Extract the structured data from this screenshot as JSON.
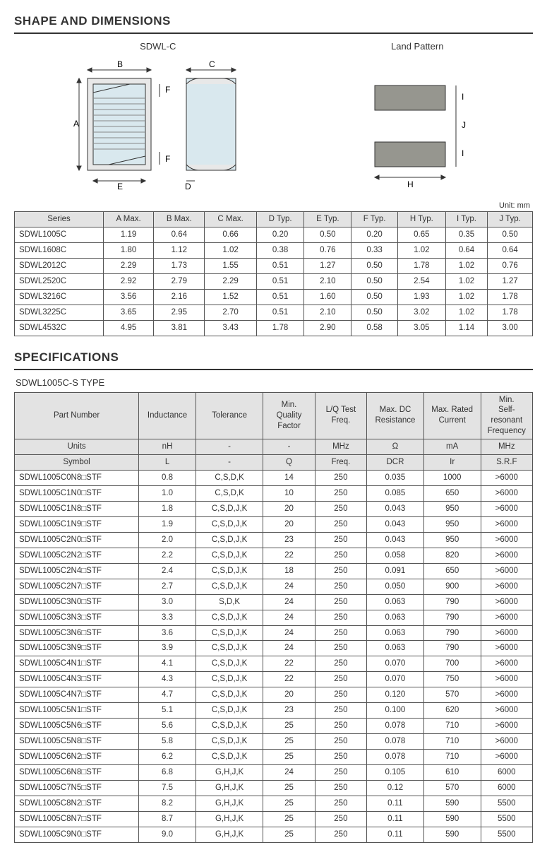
{
  "sections": {
    "shape": "SHAPE AND DIMENSIONS",
    "spec": "SPECIFICATIONS"
  },
  "diagrams": {
    "shape_title": "SDWL-C",
    "land_title": "Land Pattern",
    "labels": {
      "A": "A",
      "B": "B",
      "C": "C",
      "D": "D",
      "E": "E",
      "F": "F",
      "H": "H",
      "I": "I",
      "J": "J"
    }
  },
  "unit_label": "Unit: mm",
  "dim_table": {
    "columns": [
      "Series",
      "A Max.",
      "B Max.",
      "C Max.",
      "D Typ.",
      "E Typ.",
      "F Typ.",
      "H Typ.",
      "I Typ.",
      "J Typ."
    ],
    "rows": [
      [
        "SDWL1005C",
        "1.19",
        "0.64",
        "0.66",
        "0.20",
        "0.50",
        "0.20",
        "0.65",
        "0.35",
        "0.50"
      ],
      [
        "SDWL1608C",
        "1.80",
        "1.12",
        "1.02",
        "0.38",
        "0.76",
        "0.33",
        "1.02",
        "0.64",
        "0.64"
      ],
      [
        "SDWL2012C",
        "2.29",
        "1.73",
        "1.55",
        "0.51",
        "1.27",
        "0.50",
        "1.78",
        "1.02",
        "0.76"
      ],
      [
        "SDWL2520C",
        "2.92",
        "2.79",
        "2.29",
        "0.51",
        "2.10",
        "0.50",
        "2.54",
        "1.02",
        "1.27"
      ],
      [
        "SDWL3216C",
        "3.56",
        "2.16",
        "1.52",
        "0.51",
        "1.60",
        "0.50",
        "1.93",
        "1.02",
        "1.78"
      ],
      [
        "SDWL3225C",
        "3.65",
        "2.95",
        "2.70",
        "0.51",
        "2.10",
        "0.50",
        "3.02",
        "1.02",
        "1.78"
      ],
      [
        "SDWL4532C",
        "4.95",
        "3.81",
        "3.43",
        "1.78",
        "2.90",
        "0.58",
        "3.05",
        "1.14",
        "3.00"
      ]
    ]
  },
  "spec_subtype": "SDWL1005C-S TYPE",
  "spec_table": {
    "header1": [
      "Part Number",
      "Inductance",
      "Tolerance",
      "Min.\nQuality\nFactor",
      "L/Q Test\nFreq.",
      "Max. DC\nResistance",
      "Max. Rated\nCurrent",
      "Min.\nSelf-resonant\nFrequency"
    ],
    "header2": [
      "Units",
      "nH",
      "-",
      "-",
      "MHz",
      "Ω",
      "mA",
      "MHz"
    ],
    "header3": [
      "Symbol",
      "L",
      "-",
      "Q",
      "Freq.",
      "DCR",
      "Ir",
      "S.R.F"
    ],
    "rows": [
      [
        "SDWL1005C0N8□STF",
        "0.8",
        "C,S,D,K",
        "14",
        "250",
        "0.035",
        "1000",
        ">6000"
      ],
      [
        "SDWL1005C1N0□STF",
        "1.0",
        "C,S,D,K",
        "10",
        "250",
        "0.085",
        "650",
        ">6000"
      ],
      [
        "SDWL1005C1N8□STF",
        "1.8",
        "C,S,D,J,K",
        "20",
        "250",
        "0.043",
        "950",
        ">6000"
      ],
      [
        "SDWL1005C1N9□STF",
        "1.9",
        "C,S,D,J,K",
        "20",
        "250",
        "0.043",
        "950",
        ">6000"
      ],
      [
        "SDWL1005C2N0□STF",
        "2.0",
        "C,S,D,J,K",
        "23",
        "250",
        "0.043",
        "950",
        ">6000"
      ],
      [
        "SDWL1005C2N2□STF",
        "2.2",
        "C,S,D,J,K",
        "22",
        "250",
        "0.058",
        "820",
        ">6000"
      ],
      [
        "SDWL1005C2N4□STF",
        "2.4",
        "C,S,D,J,K",
        "18",
        "250",
        "0.091",
        "650",
        ">6000"
      ],
      [
        "SDWL1005C2N7□STF",
        "2.7",
        "C,S,D,J,K",
        "24",
        "250",
        "0.050",
        "900",
        ">6000"
      ],
      [
        "SDWL1005C3N0□STF",
        "3.0",
        "S,D,K",
        "24",
        "250",
        "0.063",
        "790",
        ">6000"
      ],
      [
        "SDWL1005C3N3□STF",
        "3.3",
        "C,S,D,J,K",
        "24",
        "250",
        "0.063",
        "790",
        ">6000"
      ],
      [
        "SDWL1005C3N6□STF",
        "3.6",
        "C,S,D,J,K",
        "24",
        "250",
        "0.063",
        "790",
        ">6000"
      ],
      [
        "SDWL1005C3N9□STF",
        "3.9",
        "C,S,D,J,K",
        "24",
        "250",
        "0.063",
        "790",
        ">6000"
      ],
      [
        "SDWL1005C4N1□STF",
        "4.1",
        "C,S,D,J,K",
        "22",
        "250",
        "0.070",
        "700",
        ">6000"
      ],
      [
        "SDWL1005C4N3□STF",
        "4.3",
        "C,S,D,J,K",
        "22",
        "250",
        "0.070",
        "750",
        ">6000"
      ],
      [
        "SDWL1005C4N7□STF",
        "4.7",
        "C,S,D,J,K",
        "20",
        "250",
        "0.120",
        "570",
        ">6000"
      ],
      [
        "SDWL1005C5N1□STF",
        "5.1",
        "C,S,D,J,K",
        "23",
        "250",
        "0.100",
        "620",
        ">6000"
      ],
      [
        "SDWL1005C5N6□STF",
        "5.6",
        "C,S,D,J,K",
        "25",
        "250",
        "0.078",
        "710",
        ">6000"
      ],
      [
        "SDWL1005C5N8□STF",
        "5.8",
        "C,S,D,J,K",
        "25",
        "250",
        "0.078",
        "710",
        ">6000"
      ],
      [
        "SDWL1005C6N2□STF",
        "6.2",
        "C,S,D,J,K",
        "25",
        "250",
        "0.078",
        "710",
        ">6000"
      ],
      [
        "SDWL1005C6N8□STF",
        "6.8",
        "G,H,J,K",
        "24",
        "250",
        "0.105",
        "610",
        "6000"
      ],
      [
        "SDWL1005C7N5□STF",
        "7.5",
        "G,H,J,K",
        "25",
        "250",
        "0.12",
        "570",
        "6000"
      ],
      [
        "SDWL1005C8N2□STF",
        "8.2",
        "G,H,J,K",
        "25",
        "250",
        "0.11",
        "590",
        "5500"
      ],
      [
        "SDWL1005C8N7□STF",
        "8.7",
        "G,H,J,K",
        "25",
        "250",
        "0.11",
        "590",
        "5500"
      ],
      [
        "SDWL1005C9N0□STF",
        "9.0",
        "G,H,J,K",
        "25",
        "250",
        "0.11",
        "590",
        "5500"
      ]
    ]
  },
  "colors": {
    "stroke": "#333333",
    "fill_body": "#d9e8ee",
    "fill_rect": "#e3e3e3",
    "pad": "#96968f"
  }
}
